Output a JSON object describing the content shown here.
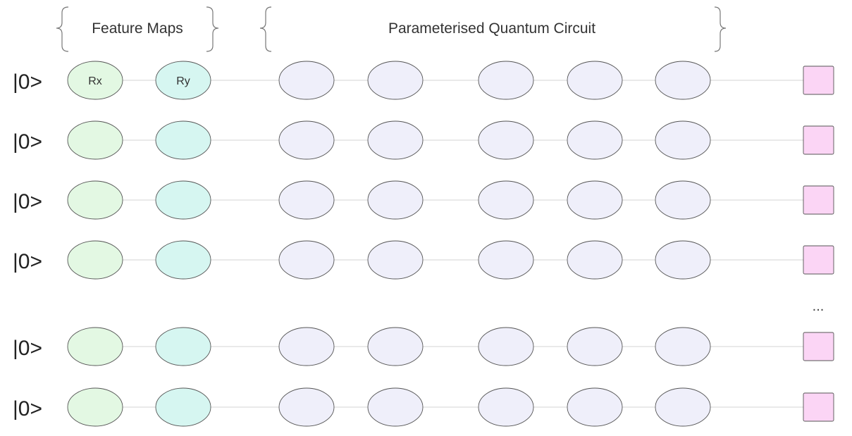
{
  "headers": {
    "feature_maps": "Feature Maps",
    "pqc": "Parameterised Quantum Circuit"
  },
  "gate_labels": [
    "Rx",
    "Ry"
  ],
  "qubits": [
    "|0>",
    "|0>",
    "|0>",
    "|0>",
    "|0>",
    "|0>"
  ],
  "ellipsis": "...",
  "colors": {
    "rx_fill": "#e3f8e3",
    "ry_fill": "#d6f6f1",
    "param_fill": "#efeffa",
    "measure_fill": "#fbd5f5",
    "wire": "#d3d3d3",
    "stroke": "#555555"
  }
}
